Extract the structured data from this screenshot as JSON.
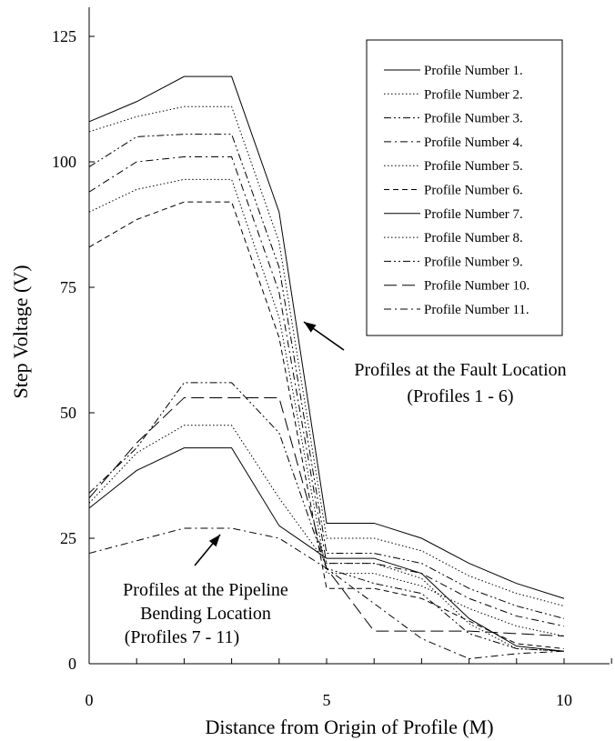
{
  "chart_data": {
    "type": "line",
    "title": "",
    "xlabel": "Distance from Origin of Profile (M)",
    "ylabel": "Step Voltage (V)",
    "xlim": [
      0,
      11
    ],
    "ylim": [
      0,
      130
    ],
    "x_ticks": [
      0,
      5,
      10
    ],
    "y_ticks": [
      0,
      25,
      50,
      75,
      100,
      125
    ],
    "x_tick_labels": [
      "0",
      "5",
      "10"
    ],
    "y_tick_labels": [
      "0",
      "25",
      "50",
      "75",
      "100",
      "125"
    ],
    "grid": false,
    "legend_position": "top-right",
    "x": [
      0,
      1,
      2,
      3,
      4,
      5,
      6,
      7,
      8,
      9,
      10
    ],
    "series": [
      {
        "name": "Profile Number 1.",
        "dash": "solid",
        "values": [
          108,
          112,
          117,
          117,
          90,
          28,
          28,
          25,
          20,
          16,
          13
        ]
      },
      {
        "name": "Profile Number 2.",
        "dash": "dotted",
        "values": [
          106,
          109,
          111,
          111,
          84,
          25,
          25,
          22.5,
          17.5,
          14,
          11.5
        ]
      },
      {
        "name": "Profile Number 3.",
        "dash": "dashdotdot",
        "values": [
          99,
          105,
          105.5,
          105.5,
          79,
          22,
          22,
          20,
          15,
          11.5,
          9
        ]
      },
      {
        "name": "Profile Number 4.",
        "dash": "dashdot",
        "values": [
          94,
          100,
          101,
          101,
          74,
          20,
          20,
          18,
          13,
          9.5,
          7.5
        ]
      },
      {
        "name": "Profile Number 5.",
        "dash": "dotted",
        "values": [
          90,
          94.5,
          96.5,
          96.5,
          69,
          18,
          18,
          15.5,
          11,
          7.5,
          5.5
        ]
      },
      {
        "name": "Profile Number 6.",
        "dash": "dashed",
        "values": [
          83,
          88.5,
          92,
          92,
          65,
          15,
          15,
          13,
          8.5,
          4,
          3
        ]
      },
      {
        "name": "Profile Number 7.",
        "dash": "solid",
        "values": [
          31,
          38.5,
          43,
          43,
          27.5,
          21,
          21,
          18,
          9,
          3.5,
          2.5
        ]
      },
      {
        "name": "Profile Number 8.",
        "dash": "dotted",
        "values": [
          32,
          42,
          47.5,
          47.5,
          33,
          20,
          20,
          17,
          8,
          3,
          2.5
        ]
      },
      {
        "name": "Profile Number 9.",
        "dash": "dashdotdot",
        "values": [
          34,
          43,
          56,
          56,
          46,
          19,
          16,
          14,
          6,
          3,
          2.5
        ]
      },
      {
        "name": "Profile Number 10.",
        "dash": "longdash",
        "values": [
          33,
          44,
          53,
          53,
          53,
          19,
          6.5,
          6.5,
          6.5,
          6,
          5.5
        ]
      },
      {
        "name": "Profile Number 11.",
        "dash": "dashdot",
        "values": [
          22,
          24.5,
          27,
          27,
          25,
          19,
          12,
          5,
          1,
          2,
          2.5
        ]
      }
    ],
    "annotations": [
      {
        "lines": [
          "Profiles at the Fault Location",
          "(Profiles 1 - 6)"
        ]
      },
      {
        "lines": [
          "Profiles at the Pipeline",
          "Bending Location",
          "(Profiles 7 - 11)"
        ]
      }
    ]
  }
}
